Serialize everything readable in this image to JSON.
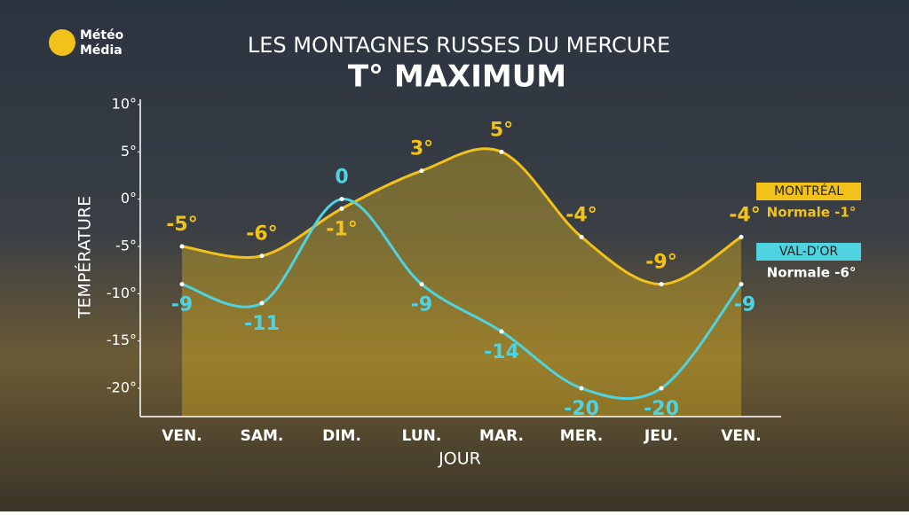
{
  "logo": {
    "line1": "Météo",
    "line2": "Média"
  },
  "chart_data": {
    "type": "line",
    "title": "LES MONTAGNES RUSSES DU MERCURE",
    "subtitle": "T° MAXIMUM",
    "x_label": "JOUR",
    "y_label": "TEMPÉRATURE",
    "categories": [
      "VEN.",
      "SAM.",
      "DIM.",
      "LUN.",
      "MAR.",
      "MER.",
      "JEU.",
      "VEN."
    ],
    "series": [
      {
        "name": "MONTRÉAL",
        "normal": "Normale -1°",
        "color": "#f2c21b",
        "values": [
          -5,
          -6,
          -1,
          3,
          5,
          -4,
          -9,
          -4
        ],
        "value_labels": [
          "-5°",
          "-6°",
          "-1°",
          "3°",
          "5°",
          "-4°",
          "-9°",
          "-4°"
        ]
      },
      {
        "name": "VAL-D'OR",
        "normal": "Normale -6°",
        "color": "#4fd3e0",
        "values": [
          -9,
          -11,
          0,
          -9,
          -14,
          -20,
          -20,
          -9
        ]
      }
    ],
    "ylim": [
      -23,
      10
    ],
    "yticks": [
      {
        "value": 10,
        "label": "10°"
      },
      {
        "value": 5,
        "label": "5°"
      },
      {
        "value": 0,
        "label": "0°"
      },
      {
        "value": -5,
        "label": "-5°"
      },
      {
        "value": -10,
        "label": "-10°"
      },
      {
        "value": -15,
        "label": "-15°"
      },
      {
        "value": -20,
        "label": "-20°"
      }
    ]
  }
}
